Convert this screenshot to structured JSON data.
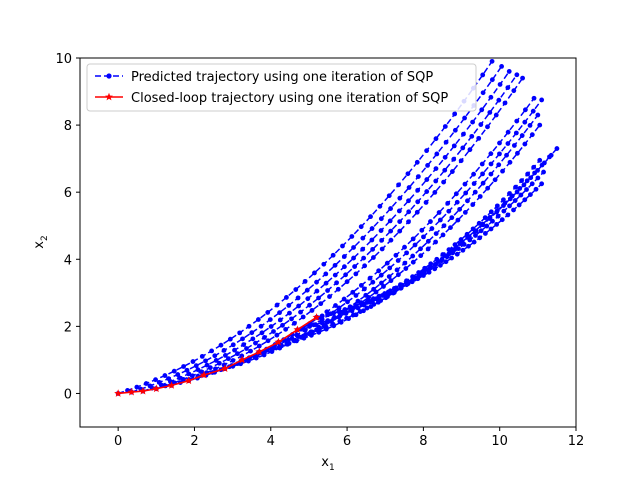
{
  "chart_data": {
    "type": "line",
    "title": "",
    "xlabel": "x",
    "xlabel_sub": "1",
    "ylabel": "x",
    "ylabel_sub": "2",
    "xlim": [
      -1,
      12
    ],
    "ylim": [
      -1,
      10
    ],
    "xticks": [
      "0",
      "2",
      "4",
      "6",
      "8",
      "10",
      "12"
    ],
    "xtick_values": [
      0,
      2,
      4,
      6,
      8,
      10,
      12
    ],
    "yticks": [
      "0",
      "2",
      "4",
      "6",
      "8",
      "10"
    ],
    "ytick_values": [
      0,
      2,
      4,
      6,
      8,
      10
    ],
    "grid": false,
    "legend_position": "top-left",
    "series": [
      {
        "name": "Predicted trajectory using one iteration of SQP",
        "color": "#0000ff",
        "line_style": "dashed",
        "marker": "dot",
        "trajectories": [
          {
            "start": [
              0.0,
              0.0
            ],
            "end": [
              9.8,
              9.9
            ]
          },
          {
            "start": [
              0.35,
              0.04
            ],
            "end": [
              10.05,
              9.75
            ]
          },
          {
            "start": [
              0.65,
              0.07
            ],
            "end": [
              10.25,
              9.6
            ]
          },
          {
            "start": [
              1.0,
              0.14
            ],
            "end": [
              10.45,
              9.5
            ]
          },
          {
            "start": [
              1.4,
              0.24
            ],
            "end": [
              10.6,
              9.4
            ]
          },
          {
            "start": [
              1.85,
              0.38
            ],
            "end": [
              10.9,
              8.8
            ]
          },
          {
            "start": [
              2.25,
              0.55
            ],
            "end": [
              11.1,
              8.75
            ]
          },
          {
            "start": [
              2.8,
              0.74
            ],
            "end": [
              11.0,
              8.3
            ]
          },
          {
            "start": [
              3.25,
              1.0
            ],
            "end": [
              11.05,
              8.0
            ]
          },
          {
            "start": [
              3.7,
              1.24
            ],
            "end": [
              11.5,
              7.3
            ]
          },
          {
            "start": [
              4.2,
              1.53
            ],
            "end": [
              11.35,
              7.1
            ]
          },
          {
            "start": [
              4.7,
              1.9
            ],
            "end": [
              11.05,
              6.95
            ]
          },
          {
            "start": [
              5.2,
              2.27
            ],
            "end": [
              11.15,
              6.6
            ]
          },
          {
            "start": [
              5.2,
              2.27
            ],
            "end": [
              11.1,
              6.25
            ]
          }
        ]
      },
      {
        "name": "Closed-loop trajectory using one iteration of SQP",
        "color": "#ff0000",
        "line_style": "solid",
        "marker": "star",
        "x": [
          0.0,
          0.35,
          0.65,
          1.0,
          1.4,
          1.85,
          2.25,
          2.8,
          3.25,
          3.7,
          4.2,
          4.7,
          5.2
        ],
        "y": [
          0.0,
          0.04,
          0.07,
          0.14,
          0.24,
          0.38,
          0.55,
          0.74,
          1.0,
          1.24,
          1.53,
          1.9,
          2.27
        ]
      }
    ]
  }
}
